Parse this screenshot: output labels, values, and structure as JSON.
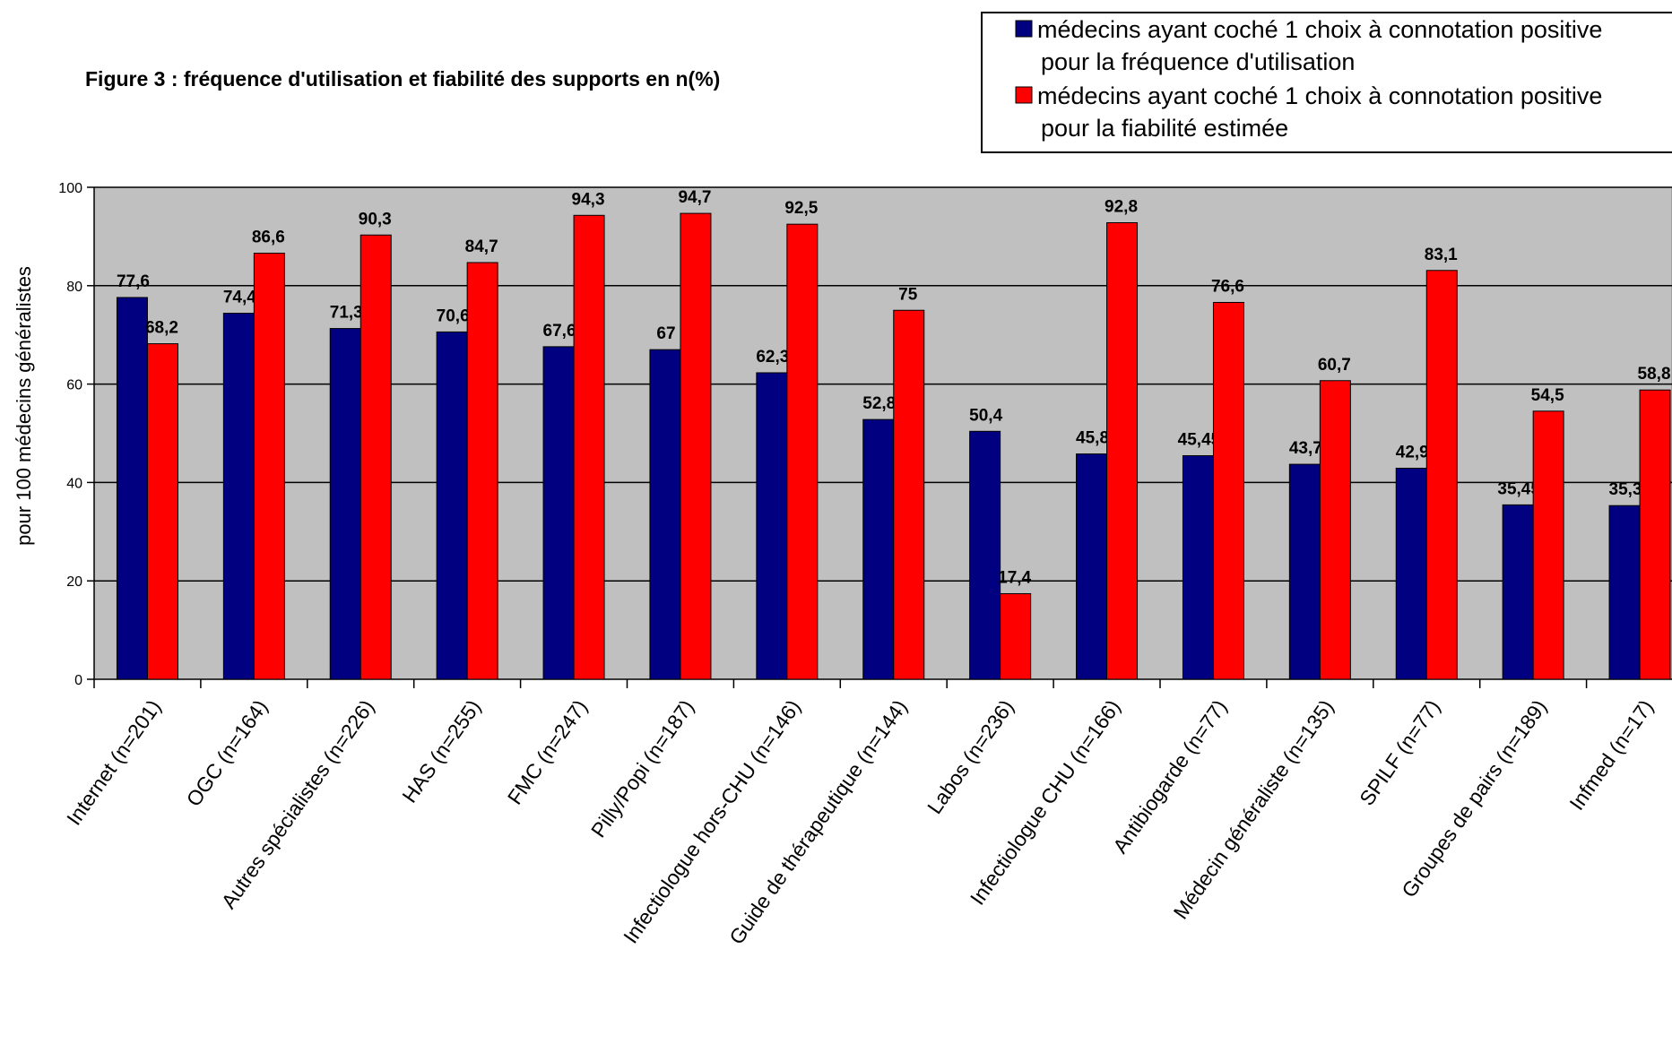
{
  "chart_data": {
    "type": "bar",
    "title": "Figure 3 : fréquence d'utilisation et fiabilité des supports en n(%)",
    "ylabel": "pour 100 médecins généralistes",
    "xlabel": "",
    "ylim": [
      0,
      100
    ],
    "yticks": [
      "0",
      "20",
      "40",
      "60",
      "80",
      "100"
    ],
    "grid": true,
    "legend_position": "top-right",
    "categories": [
      "Internet (n=201)",
      "OGC (n=164)",
      "Autres spécialistes (n=226)",
      "HAS (n=255)",
      "FMC (n=247)",
      "Pilly/Popi (n=187)",
      "Infectiologue hors-CHU (n=146)",
      "Guide de thérapeutique (n=144)",
      "Labos (n=236)",
      "Infectiologue CHU (n=166)",
      "Antibiogarde (n=77)",
      "Médecin généraliste (n=135)",
      "SPILF (n=77)",
      "Groupes de pairs (n=189)",
      "Infmed (n=17)"
    ],
    "series": [
      {
        "name": "médecins ayant coché 1 choix à connotation positive pour la fréquence d'utilisation",
        "legend_lines": [
          "médecins ayant coché 1 choix à connotation positive",
          "pour la fréquence d'utilisation"
        ],
        "color": "#000080",
        "values": [
          77.6,
          74.4,
          71.3,
          70.6,
          67.6,
          67,
          62.3,
          52.8,
          50.4,
          45.8,
          45.45,
          43.7,
          42.9,
          35.45,
          35.3
        ],
        "labels": [
          "77,6",
          "74,4",
          "71,3",
          "70,6",
          "67,6",
          "67",
          "62,3",
          "52,8",
          "50,4",
          "45,8",
          "45,45",
          "43,7",
          "42,9",
          "35,45",
          "35,3"
        ]
      },
      {
        "name": "médecins ayant coché 1 choix à connotation positive pour la fiabilité estimée",
        "legend_lines": [
          "médecins ayant coché 1 choix à connotation positive",
          "pour la fiabilité estimée"
        ],
        "color": "#ff0000",
        "values": [
          68.2,
          86.6,
          90.3,
          84.7,
          94.3,
          94.7,
          92.5,
          75,
          17.4,
          92.8,
          76.6,
          60.7,
          83.1,
          54.5,
          58.8
        ],
        "labels": [
          "68,2",
          "86,6",
          "90,3",
          "84,7",
          "94,3",
          "94,7",
          "92,5",
          "75",
          "17,4",
          "92,8",
          "76,6",
          "60,7",
          "83,1",
          "54,5",
          "58,8"
        ]
      }
    ],
    "plot_background": "#c0c0c0"
  }
}
